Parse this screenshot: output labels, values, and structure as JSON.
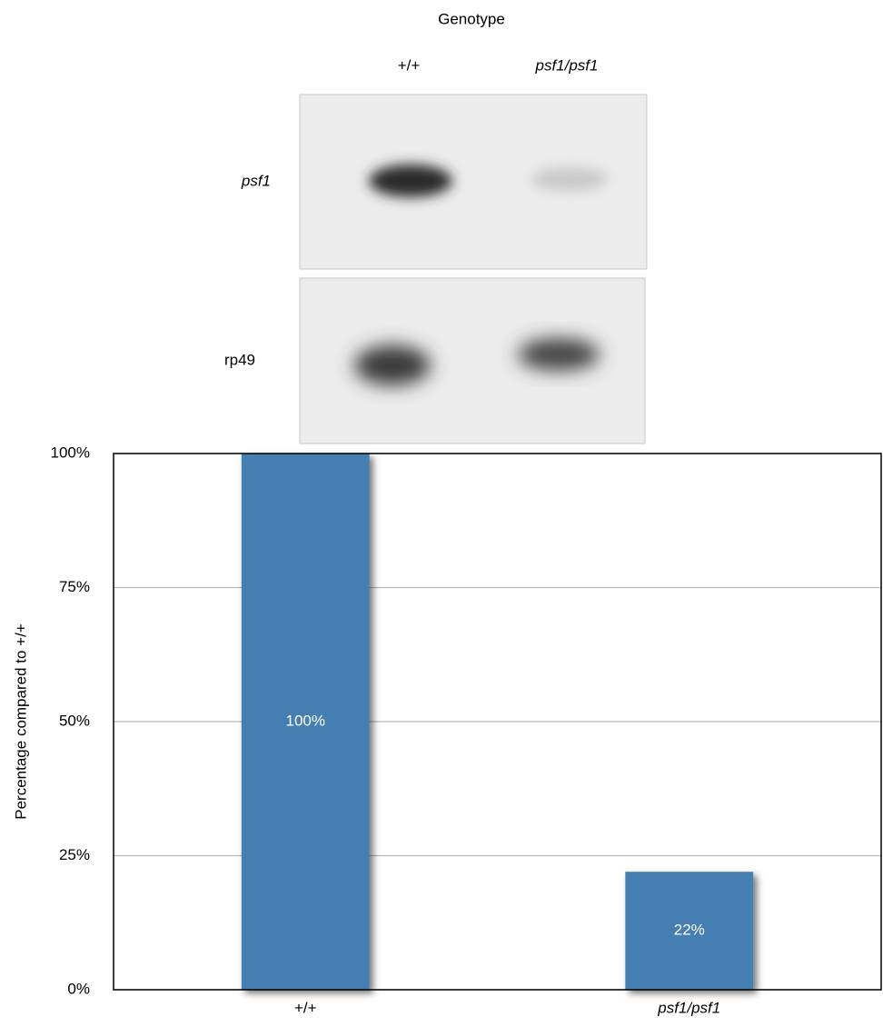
{
  "figure": {
    "title": "Genotype",
    "lanes": [
      "+/+",
      "psf1/psf1"
    ],
    "rows": [
      "psf1",
      "rp49"
    ]
  },
  "chart_data": {
    "type": "bar",
    "y_label": "Percentage compared to +/+",
    "categories": [
      "+/+",
      "psf1/psf1"
    ],
    "values": [
      100,
      22
    ],
    "value_labels": [
      "100%",
      "22%"
    ],
    "color": "#457eb1",
    "ylim": [
      0,
      100
    ],
    "yticks": [
      {
        "value": 0,
        "label": "0%"
      },
      {
        "value": 25,
        "label": "25%"
      },
      {
        "value": 50,
        "label": "50%"
      },
      {
        "value": 75,
        "label": "75%"
      },
      {
        "value": 100,
        "label": "100%"
      }
    ],
    "grid": true
  }
}
